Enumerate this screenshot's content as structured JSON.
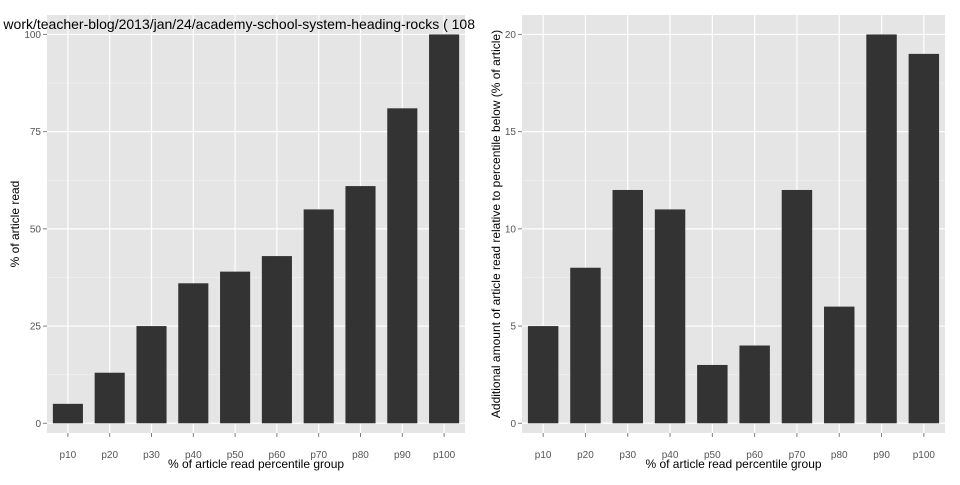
{
  "chart_data": [
    {
      "type": "bar",
      "title": "work/teacher-blog/2013/jan/24/academy-school-system-heading-rocks ( 108",
      "xlabel": "% of article read percentile group",
      "ylabel": "% of article read",
      "categories": [
        "p10",
        "p20",
        "p30",
        "p40",
        "p50",
        "p60",
        "p70",
        "p80",
        "p90",
        "p100"
      ],
      "values": [
        5,
        13,
        25,
        36,
        39,
        43,
        55,
        61,
        81,
        100
      ],
      "ylim": [
        -2.5,
        105
      ],
      "yticks": [
        0,
        25,
        50,
        75,
        100
      ],
      "ytick_labels": [
        "0",
        "25",
        "50",
        "75",
        "100"
      ],
      "grid": true,
      "colors": {
        "bar": "#333333",
        "panel": "#e5e5e5",
        "grid_major": "#ffffff",
        "grid_minor": "#f2f2f2",
        "tick_text": "#555555",
        "label_text": "#000000"
      }
    },
    {
      "type": "bar",
      "title": "",
      "xlabel": "% of article read percentile group",
      "ylabel": "Additional amount of article read relative to percentile below (% of article)",
      "categories": [
        "p10",
        "p20",
        "p30",
        "p40",
        "p50",
        "p60",
        "p70",
        "p80",
        "p90",
        "p100"
      ],
      "values": [
        5,
        8,
        12,
        11,
        3,
        4,
        12,
        6,
        20,
        19
      ],
      "ylim": [
        -0.5,
        21
      ],
      "yticks": [
        0,
        5,
        10,
        15,
        20
      ],
      "ytick_labels": [
        "0",
        "5",
        "10",
        "15",
        "20"
      ],
      "grid": true,
      "colors": {
        "bar": "#333333",
        "panel": "#e5e5e5",
        "grid_major": "#ffffff",
        "grid_minor": "#f2f2f2",
        "tick_text": "#555555",
        "label_text": "#000000"
      }
    }
  ]
}
